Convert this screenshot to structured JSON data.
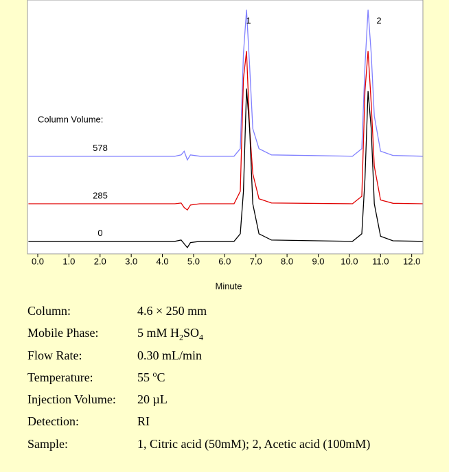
{
  "chart_data": {
    "type": "line",
    "annotation": "Column Volume:",
    "peak_labels": [
      "1",
      "2"
    ],
    "x_label": "Minute",
    "x": [
      -0.3,
      4.4,
      4.6,
      4.7,
      4.8,
      4.9,
      5.2,
      6.3,
      6.5,
      6.6,
      6.7,
      6.8,
      6.9,
      7.1,
      7.5,
      10.1,
      10.4,
      10.5,
      10.6,
      10.7,
      10.8,
      11.0,
      11.4,
      12.35
    ],
    "series": [
      {
        "name": "578",
        "color": "#8080ff",
        "values": [
          39,
          39,
          39.5,
          41,
          37.5,
          39.5,
          39,
          39,
          42,
          80,
          97.5,
          75,
          50,
          42,
          39.5,
          39,
          42,
          75,
          97.5,
          80,
          55,
          41,
          39.3,
          39
        ]
      },
      {
        "name": "285",
        "color": "#e00000",
        "values": [
          20,
          20,
          20.3,
          18.5,
          17.5,
          19.5,
          20,
          20,
          25,
          70,
          81,
          50,
          32,
          22,
          20.3,
          20,
          23,
          65,
          81,
          60,
          35,
          21.5,
          20.2,
          20
        ]
      },
      {
        "name": "0",
        "color": "#000000",
        "values": [
          5,
          5,
          5.5,
          4,
          2.5,
          4.5,
          5,
          5,
          8,
          25,
          66,
          50,
          20,
          8,
          5.5,
          5,
          8,
          30,
          65,
          50,
          20,
          7,
          5.2,
          5
        ]
      }
    ],
    "xlim": [
      -0.33,
      12.36
    ],
    "ylim": [
      0,
      100
    ],
    "xticks": [
      {
        "value": 0,
        "label": "0.0"
      },
      {
        "value": 1,
        "label": "1.0"
      },
      {
        "value": 2,
        "label": "2.0"
      },
      {
        "value": 3,
        "label": "3.0"
      },
      {
        "value": 4,
        "label": "4.0"
      },
      {
        "value": 5,
        "label": "5.0"
      },
      {
        "value": 6,
        "label": "6.0"
      },
      {
        "value": 7,
        "label": "7.0"
      },
      {
        "value": 8,
        "label": "8.0"
      },
      {
        "value": 9,
        "label": "9.0"
      },
      {
        "value": 10,
        "label": "10.0"
      },
      {
        "value": 11,
        "label": "11.0"
      },
      {
        "value": 12,
        "label": "12.0"
      }
    ]
  },
  "details": {
    "rows": [
      {
        "label": "Column:",
        "value": [
          "4.6 × 250 mm"
        ]
      },
      {
        "label": "Mobile Phase:",
        "value": [
          "5 mM H",
          "2",
          "SO",
          "4"
        ]
      },
      {
        "label": "Flow Rate:",
        "value": [
          "0.30 mL/min"
        ]
      },
      {
        "label": "Temperature:",
        "value": [
          "55 ",
          "o",
          "C"
        ]
      },
      {
        "label": "Injection Volume:",
        "value": [
          "20 µL"
        ]
      },
      {
        "label": "Detection:",
        "value": [
          "RI"
        ]
      },
      {
        "label": "Sample:",
        "value": [
          "1, Citric acid (50mM); 2, Acetic acid (100mM)"
        ]
      }
    ]
  }
}
